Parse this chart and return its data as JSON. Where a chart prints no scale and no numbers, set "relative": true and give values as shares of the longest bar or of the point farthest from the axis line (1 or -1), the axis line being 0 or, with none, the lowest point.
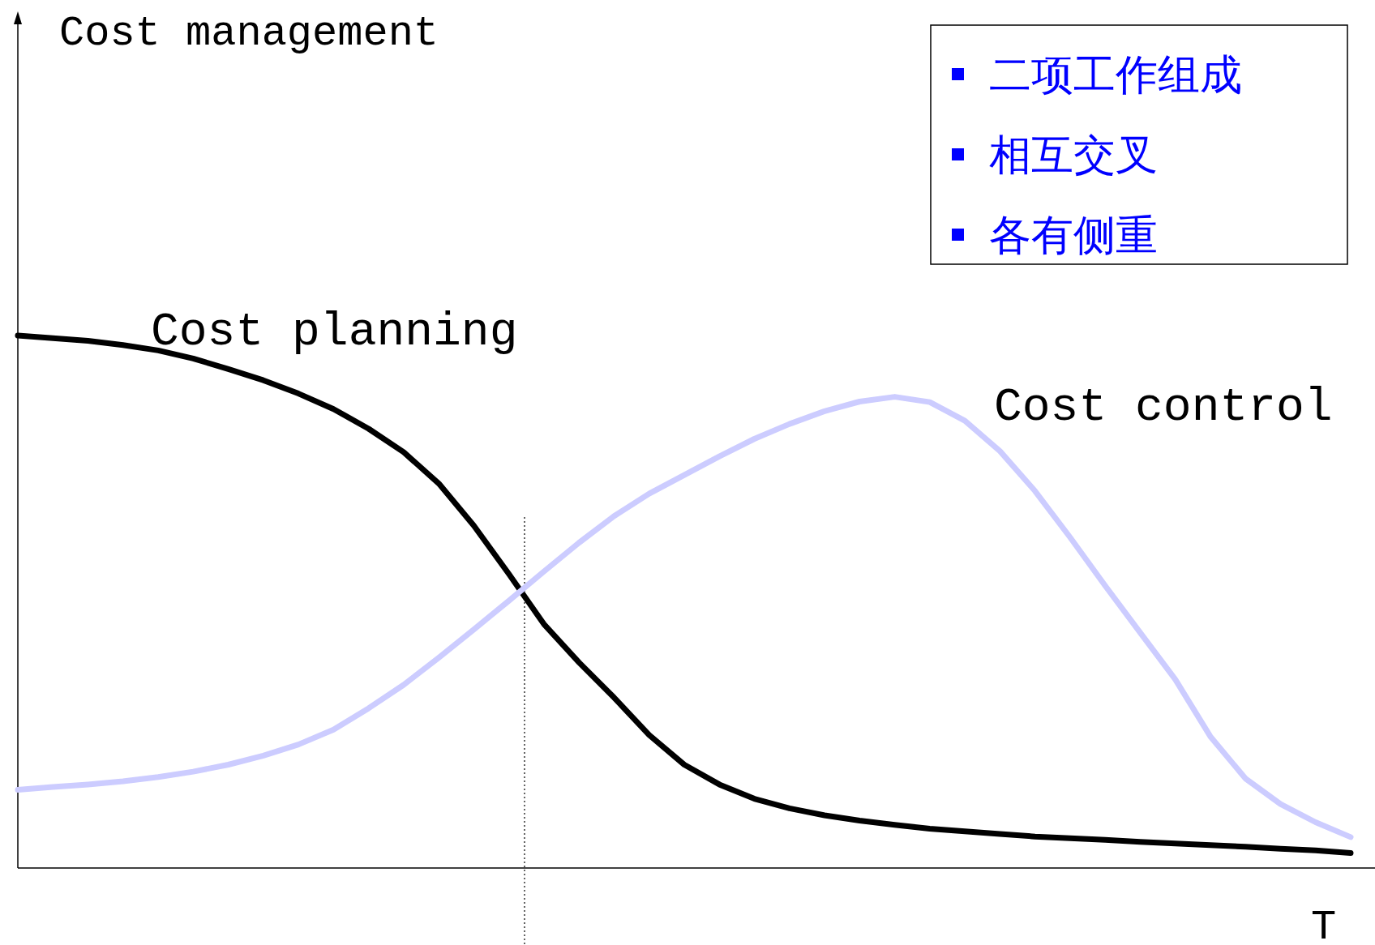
{
  "chart_data": {
    "type": "line",
    "relative": true,
    "xlabel": "T",
    "categories": [
      null,
      null,
      null,
      null,
      null,
      null,
      null,
      null,
      null,
      null,
      null,
      null,
      null,
      null,
      null,
      null,
      null,
      null,
      null,
      null,
      null,
      null,
      null,
      null,
      null,
      null,
      null,
      null,
      null,
      null,
      null,
      null,
      null,
      null,
      null,
      null,
      null,
      null,
      null
    ],
    "series": [
      {
        "name": "Cost planning",
        "color": "#000000",
        "values": [
          1.0,
          0.995,
          0.99,
          0.982,
          0.972,
          0.957,
          0.937,
          0.916,
          0.891,
          0.862,
          0.825,
          0.781,
          0.722,
          0.643,
          0.552,
          0.458,
          0.386,
          0.32,
          0.25,
          0.194,
          0.157,
          0.13,
          0.112,
          0.099,
          0.089,
          0.081,
          0.074,
          0.069,
          0.064,
          0.059,
          0.056,
          0.053,
          0.049,
          0.046,
          0.043,
          0.04,
          0.036,
          0.033,
          0.028
        ]
      },
      {
        "name": "Cost control",
        "color": "#ccccff",
        "values": [
          0.147,
          0.152,
          0.157,
          0.163,
          0.171,
          0.181,
          0.194,
          0.211,
          0.232,
          0.26,
          0.3,
          0.344,
          0.395,
          0.448,
          0.502,
          0.557,
          0.611,
          0.661,
          0.703,
          0.738,
          0.773,
          0.806,
          0.834,
          0.858,
          0.876,
          0.885,
          0.875,
          0.84,
          0.783,
          0.708,
          0.621,
          0.53,
          0.442,
          0.354,
          0.247,
          0.168,
          0.12,
          0.086,
          0.058
        ]
      }
    ],
    "annotations": [
      "Cost management",
      "二项工作组成",
      "相互交叉",
      "各有侧重"
    ]
  }
}
